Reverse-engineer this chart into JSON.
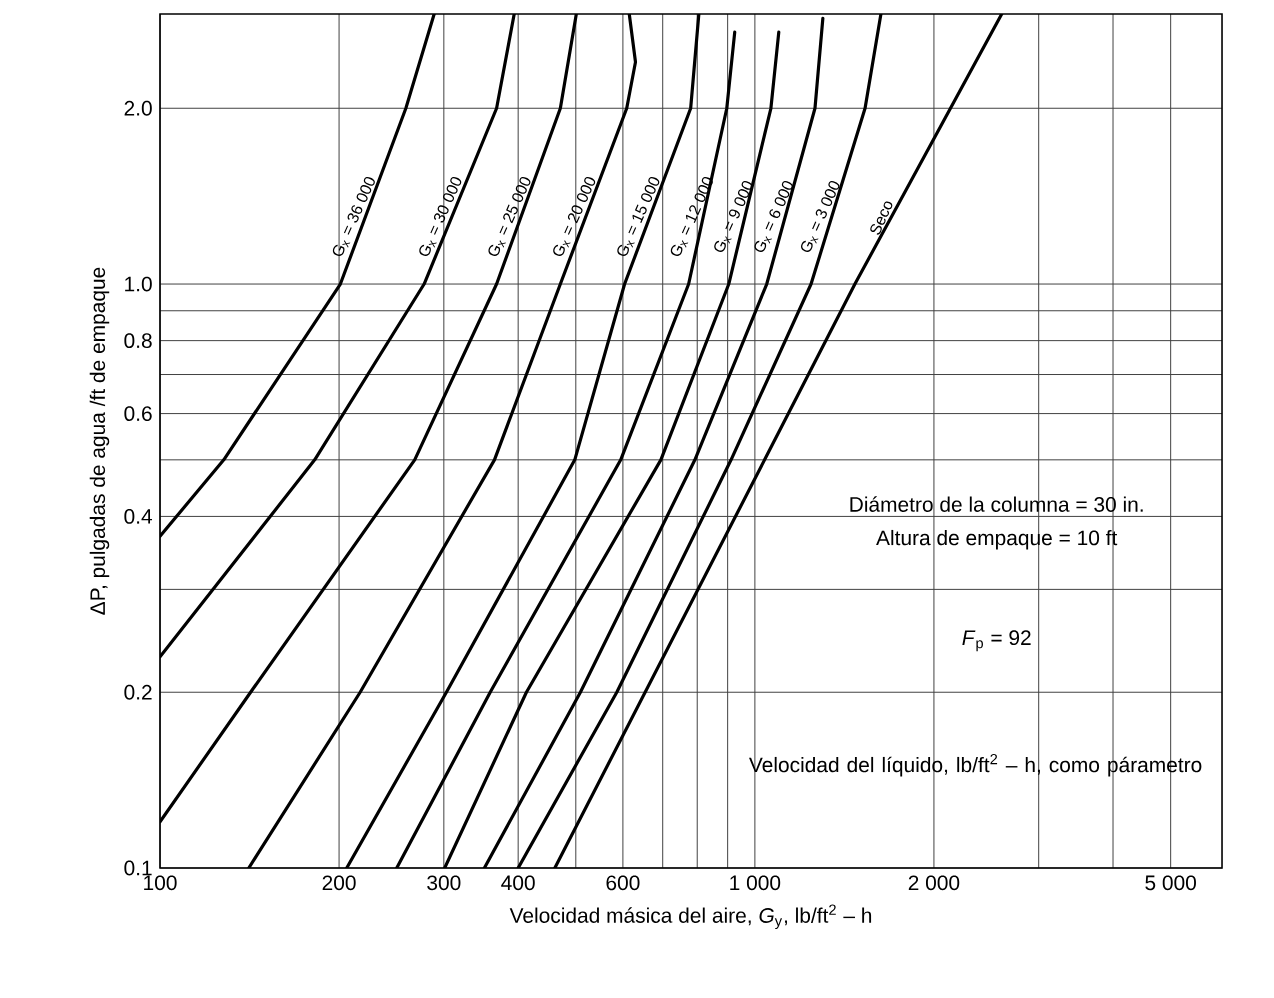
{
  "chart_data": {
    "type": "line",
    "xlabel": "Velocidad másica del aire, *G*$_{y}$, lb/ft$^{2}$ – h",
    "ylabel": "ΔP, pulgadas de agua /ft de empaque",
    "log": "xy",
    "grid": true,
    "marker": "none",
    "line_style": "solid",
    "xlim": [
      100,
      6100
    ],
    "ylim": [
      0.1,
      2.9
    ],
    "xticks": [
      100,
      200,
      300,
      400,
      {
        "value": 500,
        "label": null
      },
      600,
      {
        "value": 700,
        "label": null
      },
      {
        "value": 800,
        "label": null
      },
      {
        "value": 900,
        "label": null
      },
      {
        "value": 1000,
        "label": "1 000"
      },
      {
        "value": 2000,
        "label": "2 000"
      },
      {
        "value": 3000,
        "label": null
      },
      {
        "value": 4000,
        "label": null
      },
      {
        "value": 5000,
        "label": "5 000"
      }
    ],
    "yticks": [
      0.1,
      0.2,
      {
        "value": 0.3,
        "label": null
      },
      0.4,
      {
        "value": 0.5,
        "label": null
      },
      0.6,
      {
        "value": 0.7,
        "label": null
      },
      0.8,
      {
        "value": 0.9,
        "label": null
      },
      {
        "value": 1,
        "label": "1.0"
      },
      {
        "value": 2,
        "label": "2.0"
      }
    ],
    "series": [
      {
        "name": "G$_{x}$ = 36 000",
        "color": "#000000",
        "x": [
          100,
          128,
          201,
          259,
          289
        ],
        "values": [
          0.37,
          0.5,
          1.0,
          2.0,
          2.9
        ]
      },
      {
        "name": "G$_{x}$ = 30 000",
        "color": "#000000",
        "x": [
          100,
          182,
          278,
          368,
          394
        ],
        "values": [
          0.23,
          0.5,
          1.0,
          2.0,
          2.9
        ]
      },
      {
        "name": "G$_{x}$ = 25 000",
        "color": "#000000",
        "x": [
          100,
          142,
          268,
          368,
          471,
          501
        ],
        "values": [
          0.12,
          0.2,
          0.5,
          1.0,
          2.0,
          2.9
        ]
      },
      {
        "name": "G$_{x}$ = 20 000",
        "color": "#000000",
        "x": [
          141,
          217,
          365,
          471,
          609,
          630,
          615
        ],
        "values": [
          0.1,
          0.2,
          0.5,
          1.0,
          2.0,
          2.4,
          2.9
        ]
      },
      {
        "name": "G$_{x}$ = 15 000",
        "color": "#000000",
        "x": [
          206,
          303,
          498,
          604,
          780,
          805
        ],
        "values": [
          0.1,
          0.2,
          0.5,
          1.0,
          2.0,
          2.9
        ]
      },
      {
        "name": "G$_{x}$ = 12 000",
        "color": "#000000",
        "x": [
          250,
          359,
          595,
          774,
          897,
          925
        ],
        "values": [
          0.1,
          0.2,
          0.5,
          1.0,
          2.0,
          2.7
        ]
      },
      {
        "name": "G$_{x}$ = 9 000",
        "color": "#000000",
        "x": [
          301,
          413,
          695,
          904,
          1064,
          1097
        ],
        "values": [
          0.1,
          0.2,
          0.5,
          1.0,
          2.0,
          2.7
        ]
      },
      {
        "name": "G$_{x}$ = 6 000",
        "color": "#000000",
        "x": [
          351,
          509,
          793,
          1047,
          1262,
          1301
        ],
        "values": [
          0.1,
          0.2,
          0.5,
          1.0,
          2.0,
          2.85
        ]
      },
      {
        "name": "G$_{x}$ = 3 000",
        "color": "#000000",
        "x": [
          400,
          586,
          912,
          1243,
          1532,
          1629
        ],
        "values": [
          0.1,
          0.2,
          0.5,
          1.0,
          2.0,
          2.9
        ]
      },
      {
        "name": "Seco",
        "color": "#000000",
        "x": [
          461,
          1473,
          2600
        ],
        "values": [
          0.1,
          1.0,
          2.9
        ]
      }
    ],
    "annotations": [
      "Diámetro de la columna = 30 in.",
      "Altura de empaque = 10 ft",
      "*F*$_{p}$ = 92",
      "Velocidad del líquido, lb/ft$^{2}$ – h, como párametro"
    ]
  }
}
